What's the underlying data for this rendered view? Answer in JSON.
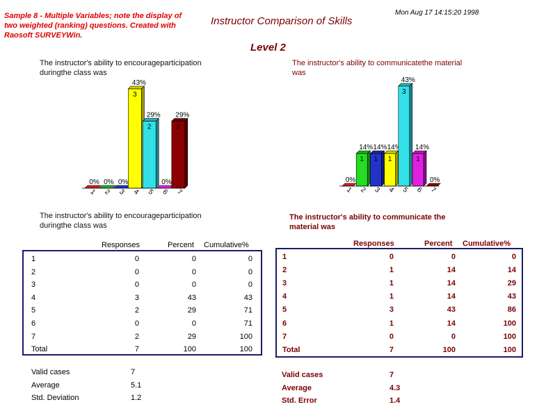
{
  "header": {
    "note": "Sample 8 - Multiple Variables; note the display of two weighted (ranking) questions. Created with Raosoft SURVEYWin.",
    "title": "Instructor Comparison  of Skills",
    "date": "Mon Aug 17 14:15:20 1998",
    "level": "Level 2"
  },
  "left": {
    "chart_question_line1": "The instructor's ability to encourageparticipation",
    "chart_question_line2": "duringthe class was",
    "table_question_line1": "The instructor's ability to encourageparticipation",
    "table_question_line2": "duringthe class was",
    "columns": [
      "Responses",
      "Percent",
      "Cumulative%"
    ],
    "rows": [
      {
        "label": "1",
        "responses": "0",
        "percent": "0",
        "cumulative": "0"
      },
      {
        "label": "2",
        "responses": "0",
        "percent": "0",
        "cumulative": "0"
      },
      {
        "label": "3",
        "responses": "0",
        "percent": "0",
        "cumulative": "0"
      },
      {
        "label": "4",
        "responses": "3",
        "percent": "43",
        "cumulative": "43"
      },
      {
        "label": "5",
        "responses": "2",
        "percent": "29",
        "cumulative": "71"
      },
      {
        "label": "6",
        "responses": "0",
        "percent": "0",
        "cumulative": "71"
      },
      {
        "label": "7",
        "responses": "2",
        "percent": "29",
        "cumulative": "100"
      },
      {
        "label": "Total",
        "responses": "7",
        "percent": "100",
        "cumulative": "100"
      }
    ],
    "stats": [
      {
        "label": "Valid cases",
        "value": "7"
      },
      {
        "label": "Average",
        "value": "5.1"
      },
      {
        "label": "Std. Deviation",
        "value": "1.2"
      }
    ]
  },
  "right": {
    "chart_question_line1": "The instructor's ability to communicatethe material",
    "chart_question_line2": "was",
    "table_question_line1": "The instructor's ability to communicate the",
    "table_question_line2": "material was",
    "columns": [
      "Responses",
      "Percent",
      "Cumulative%"
    ],
    "rows": [
      {
        "label": "1",
        "responses": "0",
        "percent": "0",
        "cumulative": "0"
      },
      {
        "label": "2",
        "responses": "1",
        "percent": "14",
        "cumulative": "14"
      },
      {
        "label": "3",
        "responses": "1",
        "percent": "14",
        "cumulative": "29"
      },
      {
        "label": "4",
        "responses": "1",
        "percent": "14",
        "cumulative": "43"
      },
      {
        "label": "5",
        "responses": "3",
        "percent": "43",
        "cumulative": "86"
      },
      {
        "label": "6",
        "responses": "1",
        "percent": "14",
        "cumulative": "100"
      },
      {
        "label": "7",
        "responses": "0",
        "percent": "0",
        "cumulative": "100"
      },
      {
        "label": "Total",
        "responses": "7",
        "percent": "100",
        "cumulative": "100"
      }
    ],
    "stats": [
      {
        "label": "Valid cases",
        "value": "7"
      },
      {
        "label": "Average",
        "value": "4.3"
      },
      {
        "label": "Std. Error",
        "value": "1.4"
      }
    ]
  },
  "chart_data": [
    {
      "type": "bar",
      "categories": [
        "1",
        "2",
        "3",
        "4",
        "5",
        "6",
        "7"
      ],
      "values": [
        0,
        0,
        0,
        43,
        29,
        0,
        29
      ],
      "counts": [
        0,
        0,
        0,
        3,
        2,
        0,
        2
      ],
      "value_labels": [
        "0%",
        "0%",
        "0%",
        "43%",
        "29%",
        "0%",
        "29%"
      ],
      "colors": [
        "#cc2222",
        "#22aa22",
        "#2233cc",
        "#ffff00",
        "#33e0e8",
        "#e020e0",
        "#8b0000"
      ],
      "ylim": [
        0,
        43
      ],
      "grid": false
    },
    {
      "type": "bar",
      "categories": [
        "1",
        "2",
        "3",
        "4",
        "5",
        "6",
        "7"
      ],
      "values": [
        0,
        14,
        14,
        14,
        43,
        14,
        0
      ],
      "counts": [
        0,
        1,
        1,
        1,
        3,
        1,
        0
      ],
      "value_labels": [
        "0%",
        "14%",
        "14%",
        "14%",
        "43%",
        "14%",
        "0%"
      ],
      "colors": [
        "#cc2222",
        "#22dd22",
        "#2233cc",
        "#ffff00",
        "#33e0e8",
        "#e020e0",
        "#8b0000"
      ],
      "ylim": [
        0,
        43
      ],
      "grid": false
    }
  ]
}
